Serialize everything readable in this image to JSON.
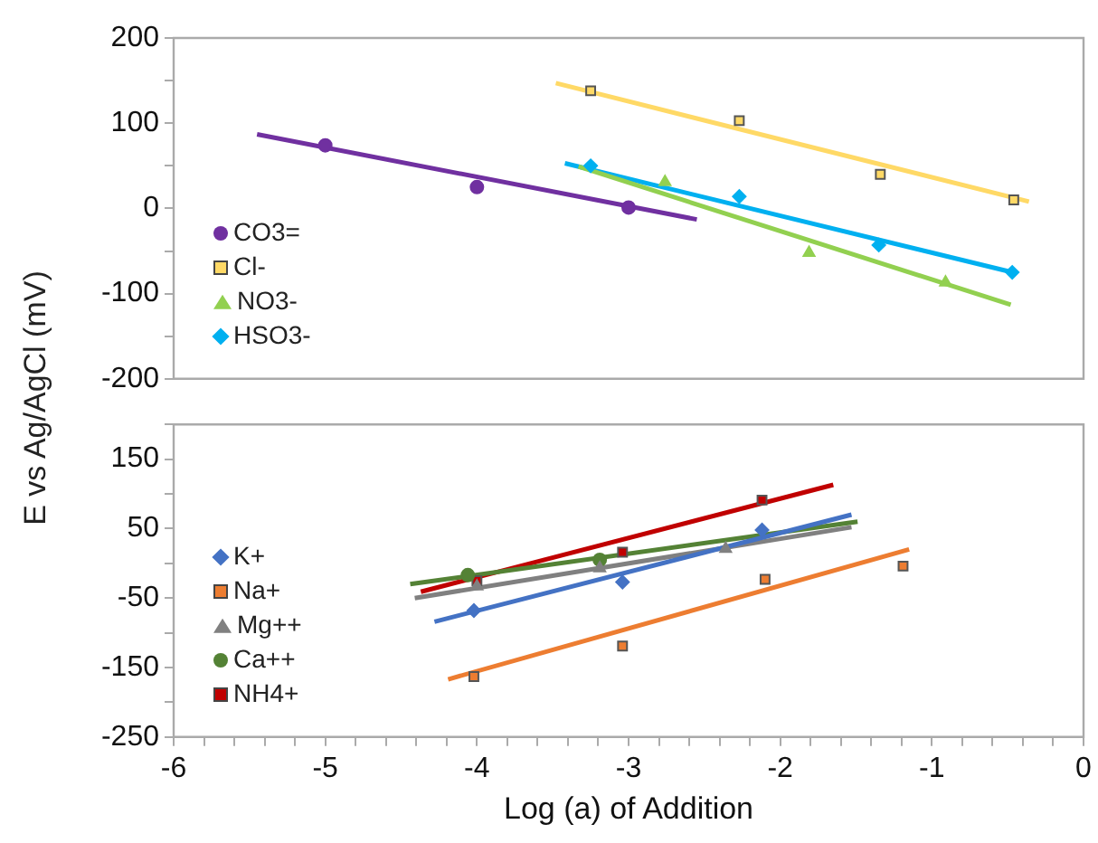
{
  "chart_data": [
    {
      "type": "scatter",
      "ylabel": "E vs Ag/AgCl  (mV)",
      "xlim": [
        -6,
        0
      ],
      "ylim": [
        -200,
        200
      ],
      "yticks": [
        {
          "value": -200,
          "label": "-200"
        },
        {
          "value": -150,
          "label": null
        },
        {
          "value": -100,
          "label": "-100"
        },
        {
          "value": -50,
          "label": null
        },
        {
          "value": 0,
          "label": "0"
        },
        {
          "value": 50,
          "label": null
        },
        {
          "value": 100,
          "label": "100"
        },
        {
          "value": 150,
          "label": null
        },
        {
          "value": 200,
          "label": "200"
        }
      ],
      "tick_labels": "y",
      "grid": false,
      "legend": "left",
      "series": [
        {
          "name": "CO3=",
          "marker": "circle",
          "color": "#7030a0",
          "x": [
            -5,
            -4,
            -3
          ],
          "values": [
            74,
            25,
            1
          ]
        },
        {
          "name": "Cl-",
          "marker": "square",
          "color": "#ffd966",
          "x": [
            -3.25,
            -2.27,
            -1.34,
            -0.46
          ],
          "values": [
            138,
            103,
            40,
            10
          ]
        },
        {
          "name": "NO3-",
          "marker": "triangle",
          "color": "#92d050",
          "x": [
            -2.76,
            -1.81,
            -0.91
          ],
          "values": [
            31,
            -52,
            -87
          ]
        },
        {
          "name": "HSO3-",
          "marker": "diamond",
          "color": "#00b0f0",
          "x": [
            -3.25,
            -2.27,
            -1.35,
            -0.47
          ],
          "values": [
            50,
            14,
            -43,
            -75
          ]
        },
        {
          "type": "line",
          "marker": "none",
          "color": "#7030a0",
          "x": [
            -5.45,
            -2.55
          ],
          "values": [
            87,
            -13
          ]
        },
        {
          "type": "line",
          "marker": "none",
          "color": "#ffd966",
          "x": [
            -3.48,
            -0.36
          ],
          "values": [
            147,
            8
          ]
        },
        {
          "type": "line",
          "marker": "none",
          "color": "#92d050",
          "x": [
            -3.33,
            -0.48
          ],
          "values": [
            49,
            -113
          ]
        },
        {
          "type": "line",
          "marker": "none",
          "color": "#00b0f0",
          "x": [
            -3.42,
            -0.47
          ],
          "values": [
            53,
            -75
          ]
        }
      ]
    },
    {
      "type": "scatter",
      "xlabel": "Log (a) of Addition",
      "xlim": [
        -6,
        0
      ],
      "ylim": [
        -250,
        200
      ],
      "xticks": [
        -6,
        {
          "value": -5.8,
          "label": null
        },
        {
          "value": -5.6,
          "label": null
        },
        {
          "value": -5.4,
          "label": null
        },
        {
          "value": -5.2,
          "label": null
        },
        -5,
        {
          "value": -4.8,
          "label": null
        },
        {
          "value": -4.6,
          "label": null
        },
        {
          "value": -4.4,
          "label": null
        },
        {
          "value": -4.2,
          "label": null
        },
        -4,
        {
          "value": -3.8,
          "label": null
        },
        {
          "value": -3.6,
          "label": null
        },
        {
          "value": -3.4,
          "label": null
        },
        {
          "value": -3.2,
          "label": null
        },
        -3,
        {
          "value": -2.8,
          "label": null
        },
        {
          "value": -2.6,
          "label": null
        },
        {
          "value": -2.4,
          "label": null
        },
        {
          "value": -2.2,
          "label": null
        },
        -2,
        {
          "value": -1.8,
          "label": null
        },
        {
          "value": -1.6,
          "label": null
        },
        {
          "value": -1.4,
          "label": null
        },
        {
          "value": -1.2,
          "label": null
        },
        -1,
        {
          "value": -0.8,
          "label": null
        },
        {
          "value": -0.6,
          "label": null
        },
        {
          "value": -0.4,
          "label": null
        },
        {
          "value": -0.2,
          "label": null
        },
        0
      ],
      "yticks": [
        {
          "value": -250,
          "label": "-250"
        },
        {
          "value": -200,
          "label": null
        },
        {
          "value": -150,
          "label": "-150"
        },
        {
          "value": -100,
          "label": null
        },
        {
          "value": -50,
          "label": "-50"
        },
        {
          "value": 0,
          "label": null
        },
        {
          "value": 50,
          "label": "50"
        },
        {
          "value": 100,
          "label": null
        },
        {
          "value": 150,
          "label": "150"
        },
        {
          "value": 200,
          "label": null
        }
      ],
      "grid": false,
      "legend": "left",
      "series": [
        {
          "name": "K+",
          "marker": "diamond",
          "color": "#4472c4",
          "x": [
            -4.02,
            -3.04,
            -2.12
          ],
          "values": [
            -68,
            -27,
            48
          ]
        },
        {
          "name": "Na+",
          "marker": "square",
          "color": "#ed7d31",
          "x": [
            -4.02,
            -3.04,
            -2.1,
            -1.19
          ],
          "values": [
            -163,
            -119,
            -23,
            -4
          ]
        },
        {
          "name": "Mg++",
          "marker": "triangle",
          "color": "#808080",
          "x": [
            -4,
            -3.19,
            -2.36
          ],
          "values": [
            -33,
            -7,
            21
          ]
        },
        {
          "name": "Ca++",
          "marker": "circle",
          "color": "#548235",
          "x": [
            -4.06,
            -3.19
          ],
          "values": [
            -17,
            5
          ]
        },
        {
          "name": "NH4+",
          "marker": "square",
          "color": "#c00000",
          "x": [
            -4,
            -3.04,
            -2.12
          ],
          "values": [
            -25,
            16,
            91
          ]
        },
        {
          "type": "line",
          "marker": "none",
          "color": "#4472c4",
          "x": [
            -4.28,
            -1.53
          ],
          "values": [
            -84,
            70
          ]
        },
        {
          "type": "line",
          "marker": "none",
          "color": "#ed7d31",
          "x": [
            -4.19,
            -1.15
          ],
          "values": [
            -167,
            20
          ]
        },
        {
          "type": "line",
          "marker": "none",
          "color": "#808080",
          "x": [
            -4.41,
            -1.53
          ],
          "values": [
            -50,
            52
          ]
        },
        {
          "type": "line",
          "marker": "none",
          "color": "#548235",
          "x": [
            -4.44,
            -1.49
          ],
          "values": [
            -30,
            60
          ]
        },
        {
          "type": "line",
          "marker": "none",
          "color": "#c00000",
          "x": [
            -4.37,
            -1.65
          ],
          "values": [
            -41,
            113
          ]
        }
      ]
    }
  ]
}
